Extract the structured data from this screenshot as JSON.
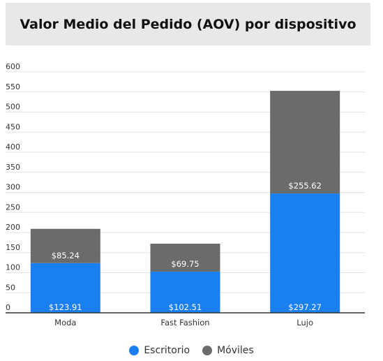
{
  "chart_data": {
    "type": "bar",
    "stacked": true,
    "title": "Valor Medio del Pedido (AOV) por dispositivo",
    "categories": [
      "Moda",
      "Fast Fashion",
      "Lujo"
    ],
    "series": [
      {
        "name": "Escritorio",
        "color": "#1a7ff0",
        "values": [
          123.91,
          102.51,
          297.27
        ],
        "labels": [
          "$123.91",
          "$102.51",
          "$297.27"
        ]
      },
      {
        "name": "Móviles",
        "color": "#6b6b6b",
        "values": [
          85.24,
          69.75,
          255.62
        ],
        "labels": [
          "$85.24",
          "$69.75",
          "$255.62"
        ]
      }
    ],
    "yticks": [
      "0",
      "50",
      "100",
      "150",
      "200",
      "250",
      "300",
      "350",
      "400",
      "450",
      "500",
      "550",
      "600"
    ],
    "ylim": [
      0,
      600
    ],
    "grid": true,
    "legend_position": "bottom-center"
  }
}
